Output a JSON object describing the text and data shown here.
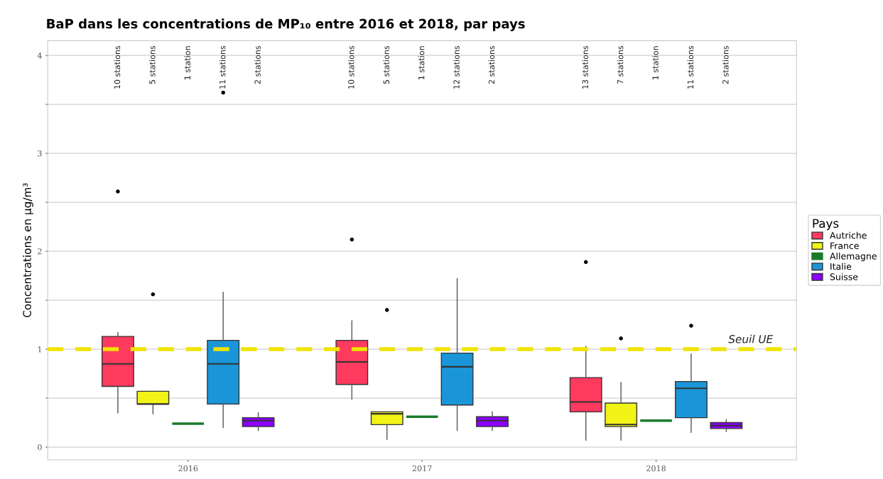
{
  "chart_data": {
    "type": "box",
    "title": "BaP dans les concentrations de MP₁₀ entre 2016 et 2018, par pays",
    "ylabel": "Concentrations en µg/m³",
    "legend_title": "Pays",
    "categories": [
      "2016",
      "2017",
      "2018"
    ],
    "series": [
      {
        "name": "Autriche",
        "color": "#fe3a5e",
        "boxes": [
          {
            "low": 0.35,
            "q1": 0.62,
            "median": 0.85,
            "q3": 1.13,
            "high": 1.17,
            "outliers": [
              2.61
            ]
          },
          {
            "low": 0.49,
            "q1": 0.64,
            "median": 0.87,
            "q3": 1.09,
            "high": 1.29,
            "outliers": [
              2.12
            ]
          },
          {
            "low": 0.07,
            "q1": 0.36,
            "median": 0.46,
            "q3": 0.71,
            "high": 1.03,
            "outliers": [
              1.89
            ]
          }
        ]
      },
      {
        "name": "France",
        "color": "#f2f316",
        "boxes": [
          {
            "low": 0.34,
            "q1": 0.44,
            "median": 0.44,
            "q3": 0.57,
            "high": 0.57,
            "outliers": [
              1.56
            ]
          },
          {
            "low": 0.08,
            "q1": 0.23,
            "median": 0.34,
            "q3": 0.36,
            "high": 0.36,
            "outliers": [
              1.4
            ]
          },
          {
            "low": 0.07,
            "q1": 0.21,
            "median": 0.23,
            "q3": 0.45,
            "high": 0.66,
            "outliers": [
              1.11
            ]
          }
        ]
      },
      {
        "name": "Allemagne",
        "color": "#1b7a2a",
        "boxes": [
          {
            "low": 0.24,
            "q1": 0.24,
            "median": 0.24,
            "q3": 0.24,
            "high": 0.24
          },
          {
            "low": 0.31,
            "q1": 0.31,
            "median": 0.31,
            "q3": 0.31,
            "high": 0.31
          },
          {
            "low": 0.27,
            "q1": 0.27,
            "median": 0.27,
            "q3": 0.27,
            "high": 0.27
          }
        ]
      },
      {
        "name": "Italie",
        "color": "#1a96d8",
        "boxes": [
          {
            "low": 0.2,
            "q1": 0.44,
            "median": 0.85,
            "q3": 1.09,
            "high": 1.58,
            "outliers": [
              3.62
            ]
          },
          {
            "low": 0.17,
            "q1": 0.43,
            "median": 0.82,
            "q3": 0.96,
            "high": 1.72
          },
          {
            "low": 0.15,
            "q1": 0.3,
            "median": 0.6,
            "q3": 0.67,
            "high": 0.95,
            "outliers": [
              1.24
            ]
          }
        ]
      },
      {
        "name": "Suisse",
        "color": "#8c00ff",
        "boxes": [
          {
            "low": 0.17,
            "q1": 0.21,
            "median": 0.27,
            "q3": 0.3,
            "high": 0.35
          },
          {
            "low": 0.17,
            "q1": 0.21,
            "median": 0.27,
            "q3": 0.31,
            "high": 0.36
          },
          {
            "low": 0.16,
            "q1": 0.19,
            "median": 0.22,
            "q3": 0.25,
            "high": 0.28
          }
        ]
      }
    ],
    "annotations": [
      "10 stations",
      "5 stations",
      "1 station",
      "11 stations",
      "2 stations",
      "10 stations",
      "5 stations",
      "1 station",
      "12 stations",
      "2 stations",
      "13 stations",
      "7 stations",
      "1 station",
      "11 stations",
      "2 stations"
    ],
    "ref_lines": [
      {
        "axis": "y",
        "value": 1,
        "label": "Seuil UE",
        "color": "#f0e400",
        "line_style": "dashed"
      }
    ],
    "ylim": [
      -0.13,
      4.15
    ],
    "yticks": [
      0,
      {
        "value": 0.5,
        "label": null
      },
      1,
      {
        "value": 1.5,
        "label": null
      },
      2,
      {
        "value": 2.5,
        "label": null
      },
      3,
      {
        "value": 3.5,
        "label": null
      },
      4
    ],
    "grid": "y",
    "legend": "right"
  }
}
